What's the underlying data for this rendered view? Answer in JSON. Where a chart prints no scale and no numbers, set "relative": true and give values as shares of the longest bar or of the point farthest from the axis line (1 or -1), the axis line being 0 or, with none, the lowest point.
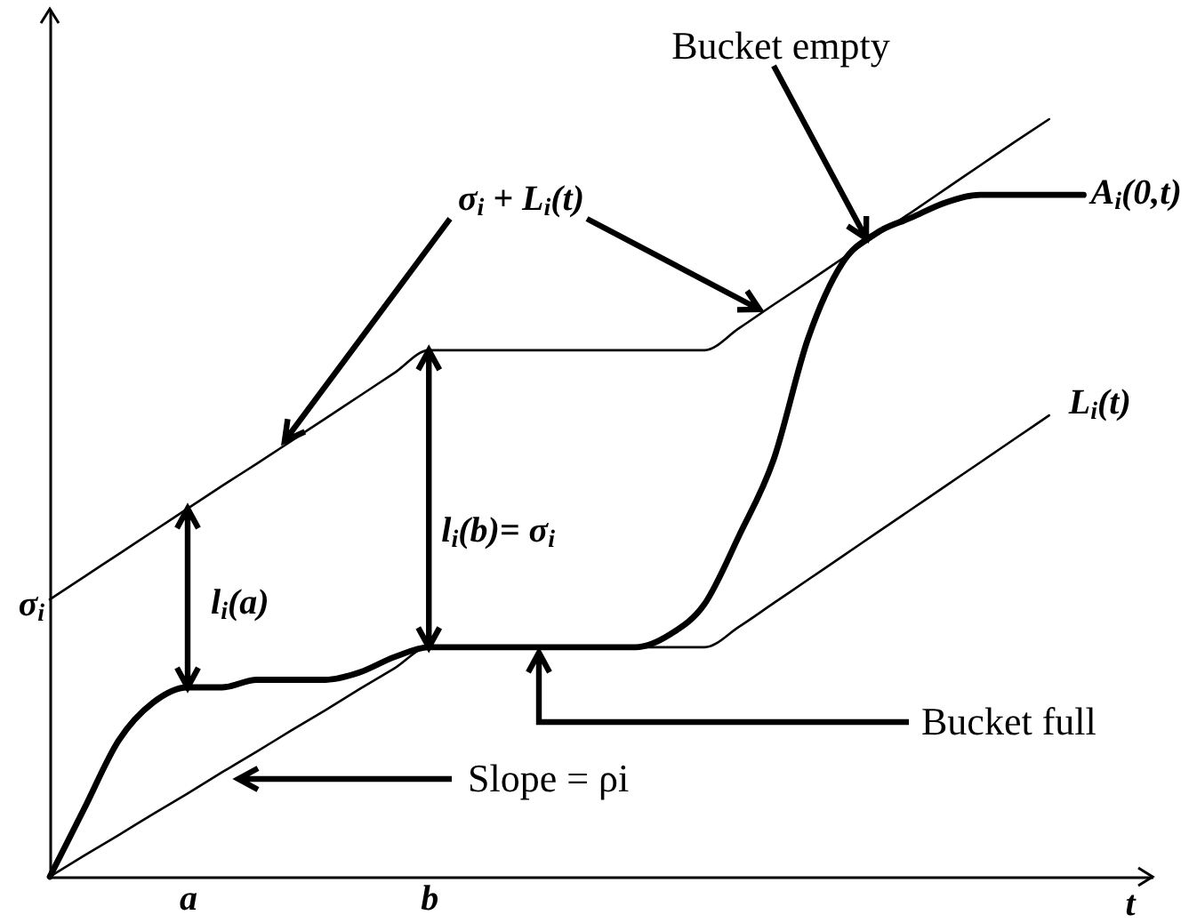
{
  "chart_data": {
    "type": "line",
    "relative": true,
    "xlabel": "t",
    "categories": [
      null,
      null,
      null,
      null,
      "a",
      null,
      null,
      null,
      null,
      null,
      null,
      "b",
      null,
      null,
      null,
      null,
      null,
      null,
      null,
      null,
      null,
      null,
      null,
      null,
      null,
      null,
      null,
      null,
      null,
      null,
      null,
      null,
      null
    ],
    "series": [
      {
        "color": "#000000",
        "values": [
          0.366,
          0.396,
          0.426,
          0.456,
          0.486,
          0.516,
          0.545,
          0.575,
          0.605,
          0.635,
          0.665,
          0.695,
          0.695,
          0.695,
          0.695,
          0.695,
          0.695,
          0.695,
          0.695,
          0.695,
          0.724,
          0.755,
          0.785,
          0.816,
          0.847,
          0.877,
          0.908,
          0.939,
          0.97,
          1,
          null,
          null,
          null
        ]
      },
      {
        "name": "L$_{i}$(t)",
        "color": "#000000",
        "values": [
          0,
          0.028,
          0.055,
          0.083,
          0.11,
          0.138,
          0.165,
          0.193,
          0.22,
          0.248,
          0.275,
          0.303,
          0.303,
          0.303,
          0.303,
          0.303,
          0.303,
          0.303,
          0.303,
          0.303,
          0.33,
          0.361,
          0.392,
          0.423,
          0.454,
          0.485,
          0.516,
          0.547,
          0.578,
          0.609,
          null,
          null,
          null
        ]
      },
      {
        "name": "A$_{i}$(0,t)",
        "color": "#000000",
        "values": [
          0,
          0.09,
          0.18,
          0.23,
          0.25,
          0.25,
          0.26,
          0.26,
          0.26,
          0.27,
          0.29,
          0.303,
          0.303,
          0.303,
          0.303,
          0.303,
          0.303,
          0.303,
          0.32,
          0.36,
          0.45,
          0.55,
          0.71,
          0.81,
          0.85,
          0.87,
          0.89,
          0.9,
          0.9,
          0.9,
          0.9,
          null,
          null
        ]
      }
    ],
    "annotations": [
      "Bucket empty",
      "σ$_{i}$ + L$_{i}$(t)",
      {
        "text": "l$_{i}$(a)",
        "x": "a",
        "y": 0.25
      },
      {
        "text": "l$_{i}$(b)= σ$_{i}$",
        "x": "b",
        "y": 0.303
      },
      "Slope = ρi",
      "Bucket full",
      "σ$_{i}$"
    ]
  }
}
